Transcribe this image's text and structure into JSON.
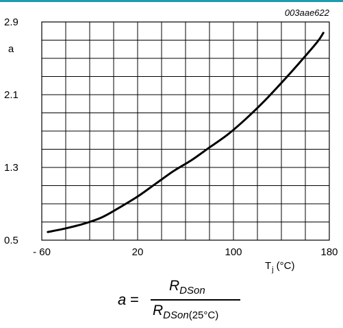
{
  "figure_code": "003aae622",
  "formula": {
    "lhs": "a",
    "eq": "=",
    "num_base": "R",
    "num_sub": "DSon",
    "den_base": "R",
    "den_sub": "DSon",
    "den_paren": "(25°C)"
  },
  "chart_data": {
    "type": "line",
    "title": "",
    "xlabel_main": "T",
    "xlabel_sub": "j",
    "xlabel_unit": "(°C)",
    "ylabel": "a",
    "xlim": [
      -60,
      180
    ],
    "ylim": [
      0.5,
      2.9
    ],
    "grid": true,
    "x_ticks": [
      -60,
      20,
      100,
      180
    ],
    "x_tick_labels": [
      "- 60",
      "20",
      "100",
      "180"
    ],
    "y_ticks": [
      0.5,
      1.3,
      2.1,
      2.9
    ],
    "y_tick_labels": [
      "0.5",
      "1.3",
      "2.1",
      "2.9"
    ],
    "x_grid_step": 20,
    "y_grid_step": 0.2,
    "series": [
      {
        "x": [
          -55,
          -40,
          -25,
          -10,
          5,
          20,
          35,
          50,
          65,
          80,
          95,
          110,
          125,
          140,
          155,
          170,
          175
        ],
        "y": [
          0.59,
          0.63,
          0.68,
          0.75,
          0.86,
          0.98,
          1.12,
          1.26,
          1.38,
          1.52,
          1.66,
          1.83,
          2.02,
          2.23,
          2.45,
          2.68,
          2.78
        ]
      }
    ]
  }
}
